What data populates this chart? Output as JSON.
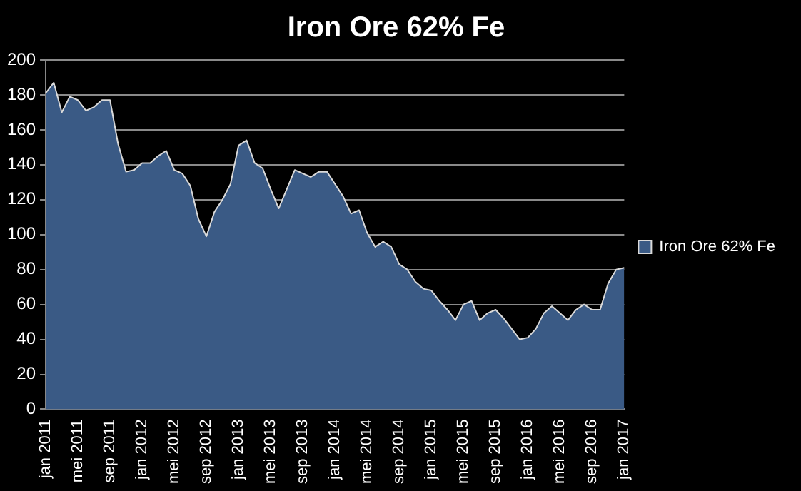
{
  "chart_data": {
    "type": "area",
    "title": "Iron Ore 62% Fe",
    "categories": [
      "jan 2011",
      null,
      null,
      null,
      "mei 2011",
      null,
      null,
      null,
      "sep 2011",
      null,
      null,
      null,
      "jan 2012",
      null,
      null,
      null,
      "mei 2012",
      null,
      null,
      null,
      "sep 2012",
      null,
      null,
      null,
      "jan 2013",
      null,
      null,
      null,
      "mei 2013",
      null,
      null,
      null,
      "sep 2013",
      null,
      null,
      null,
      "jan 2014",
      null,
      null,
      null,
      "mei 2014",
      null,
      null,
      null,
      "sep 2014",
      null,
      null,
      null,
      "jan 2015",
      null,
      null,
      null,
      "mei 2015",
      null,
      null,
      null,
      "sep 2015",
      null,
      null,
      null,
      "jan 2016",
      null,
      null,
      null,
      "mei 2016",
      null,
      null,
      null,
      "sep 2016",
      null,
      null,
      null,
      "jan 2017"
    ],
    "series": [
      {
        "name": "Iron Ore 62% Fe",
        "color": "#3a5a85",
        "values": [
          181,
          187,
          170,
          179,
          177,
          171,
          173,
          177,
          177,
          152,
          136,
          137,
          141,
          141,
          145,
          148,
          137,
          135,
          128,
          109,
          99,
          113,
          120,
          129,
          151,
          154,
          141,
          138,
          126,
          115,
          126,
          137,
          135,
          133,
          136,
          136,
          129,
          122,
          112,
          114,
          101,
          93,
          96,
          93,
          83,
          80,
          73,
          69,
          68,
          62,
          57,
          51,
          60,
          62,
          51,
          55,
          57,
          52,
          46,
          40,
          41,
          46,
          55,
          59,
          55,
          51,
          57,
          60,
          57,
          57,
          72,
          80,
          81
        ]
      }
    ],
    "ylim": [
      0,
      200
    ],
    "yticks": [
      0,
      20,
      40,
      60,
      80,
      100,
      120,
      140,
      160,
      180,
      200
    ],
    "grid": "y",
    "legend": "right"
  }
}
